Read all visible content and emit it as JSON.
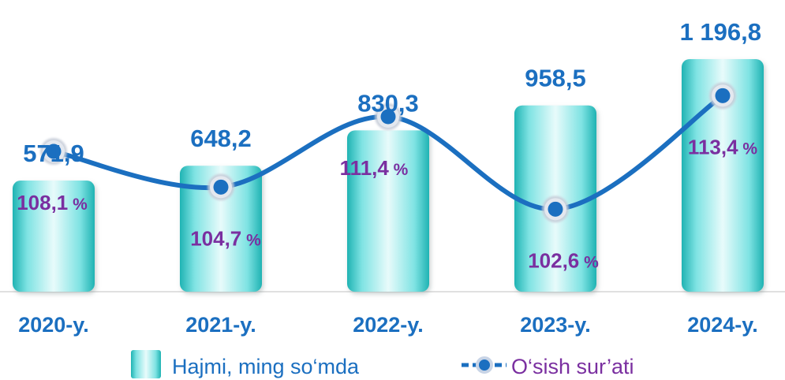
{
  "chart_data": {
    "type": "bar",
    "categories": [
      "2020-y.",
      "2021-y.",
      "2022-y.",
      "2023-y.",
      "2024-y."
    ],
    "series": [
      {
        "name": "Hajmi, ming so‘mda",
        "values": [
          571.9,
          648.2,
          830.3,
          958.5,
          1196.8
        ],
        "labels": [
          "571,9",
          "648,2",
          "830,3",
          "958,5",
          "1 196,8"
        ]
      },
      {
        "name": "O‘sish sur’ati",
        "type": "line",
        "values": [
          108.1,
          104.7,
          111.4,
          102.6,
          113.4
        ],
        "labels": [
          "108,1 %",
          "104,7 %",
          "111,4 %",
          "102,6 %",
          "113,4 %"
        ]
      }
    ],
    "colors": {
      "bar_light": "#e8fbfb",
      "bar_mid": "#7fe3e3",
      "bar_dark": "#1fb3b3",
      "line": "#1b6fc0",
      "value_text": "#1b6fc0",
      "rate_text": "#7a2fa0"
    },
    "legend": "bottom",
    "grid": false
  }
}
